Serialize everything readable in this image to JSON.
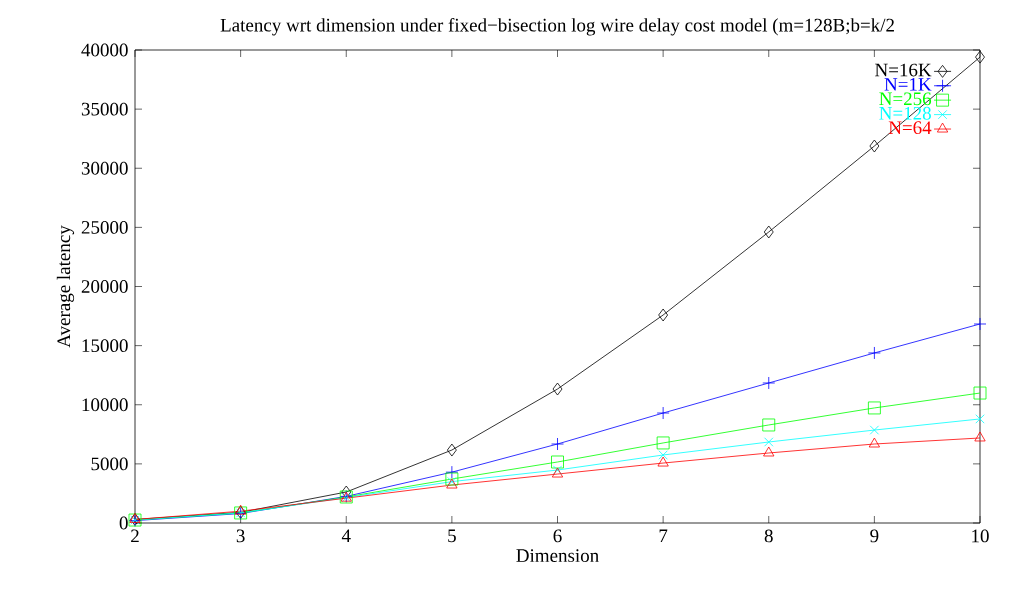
{
  "chart_data": {
    "type": "line",
    "title": "Latency wrt dimension under fixed−bisection log wire delay cost model (m=128B;b=k/2",
    "xlabel": "Dimension",
    "ylabel": "Average latency",
    "x": [
      2,
      3,
      4,
      5,
      6,
      7,
      8,
      9,
      10
    ],
    "series": [
      {
        "name": "N=16K",
        "color": "#000000",
        "marker": "diamond",
        "values": [
          300,
          900,
          2620,
          6170,
          11330,
          17590,
          24610,
          31880,
          39400
        ]
      },
      {
        "name": "N=1K",
        "color": "#0000ff",
        "marker": "plus",
        "values": [
          200,
          800,
          2250,
          4300,
          6680,
          9300,
          11840,
          14380,
          16830
        ]
      },
      {
        "name": "N=256",
        "color": "#00ff00",
        "marker": "square",
        "values": [
          250,
          850,
          2200,
          3720,
          5160,
          6770,
          8290,
          9730,
          10990
        ]
      },
      {
        "name": "N=128",
        "color": "#00ffff",
        "marker": "cross",
        "values": [
          250,
          850,
          2150,
          3500,
          4480,
          5750,
          6850,
          7860,
          8800
        ]
      },
      {
        "name": "N=64",
        "color": "#ff0000",
        "marker": "triangle",
        "values": [
          300,
          1000,
          2100,
          3210,
          4140,
          5070,
          5920,
          6680,
          7190
        ]
      }
    ],
    "xlim": [
      2,
      10
    ],
    "xticks": [
      2,
      3,
      4,
      5,
      6,
      7,
      8,
      9,
      10
    ],
    "ylim": [
      0,
      40000
    ],
    "yticks": [
      0,
      5000,
      10000,
      15000,
      20000,
      25000,
      30000,
      35000,
      40000
    ],
    "grid": false,
    "legend": "top right",
    "line_style": "solid"
  }
}
